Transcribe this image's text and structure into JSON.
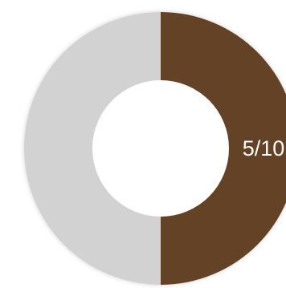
{
  "chart_data": {
    "type": "pie",
    "donut": true,
    "value": 5,
    "max": 10,
    "label": "5/10",
    "slices": [
      {
        "value": 5,
        "color": "#644228"
      },
      {
        "value": 5,
        "color": "#d2d2d2"
      }
    ],
    "colors": {
      "filled": "#644228",
      "remaining": "#d2d2d2",
      "label": "#ffffff"
    }
  }
}
